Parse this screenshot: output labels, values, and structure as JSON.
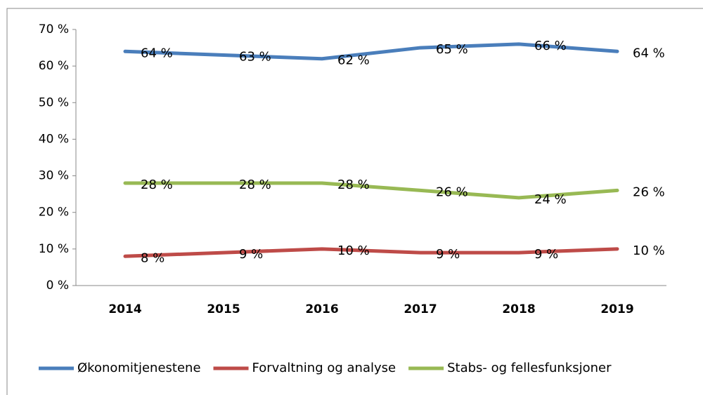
{
  "chart_data": {
    "type": "line",
    "categories": [
      "2014",
      "2015",
      "2016",
      "2017",
      "2018",
      "2019"
    ],
    "series": [
      {
        "name": "Økonomitjenestene",
        "color": "#4a7ebb",
        "values": [
          64,
          63,
          62,
          65,
          66,
          64
        ],
        "value_labels": [
          "64 %",
          "63 %",
          "62 %",
          "65 %",
          "66 %",
          "64 %"
        ]
      },
      {
        "name": "Forvaltning og analyse",
        "color": "#be4b48",
        "values": [
          8,
          9,
          10,
          9,
          9,
          10
        ],
        "value_labels": [
          "8 %",
          "9 %",
          "10 %",
          "9 %",
          "9 %",
          "10 %"
        ]
      },
      {
        "name": "Stabs- og fellesfunksjoner",
        "color": "#98b954",
        "values": [
          28,
          28,
          28,
          26,
          24,
          26
        ],
        "value_labels": [
          "28 %",
          "28 %",
          "28 %",
          "26 %",
          "24 %",
          "26 %"
        ]
      }
    ],
    "ylim": [
      0,
      70
    ],
    "yticks": [
      {
        "value": 0,
        "label": "0 %"
      },
      {
        "value": 10,
        "label": "10 %"
      },
      {
        "value": 20,
        "label": "20 %"
      },
      {
        "value": 30,
        "label": "30 %"
      },
      {
        "value": 40,
        "label": "40 %"
      },
      {
        "value": 50,
        "label": "50 %"
      },
      {
        "value": 60,
        "label": "60 %"
      },
      {
        "value": 70,
        "label": "70 %"
      }
    ],
    "grid": false,
    "legend": "bottom"
  }
}
